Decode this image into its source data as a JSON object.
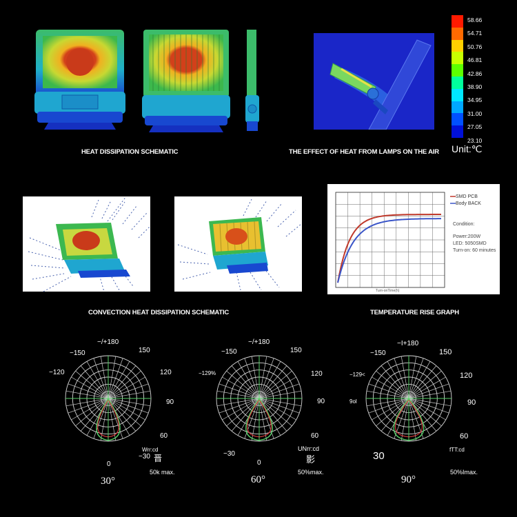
{
  "captions": {
    "heat_dissipation": "HEAT DISSIPATION SCHEMATIC",
    "air_effect": "THE EFFECT OF HEAT FROM LAMPS ON THE AIR",
    "convection": "CONVECTION HEAT DISSIPATION SCHEMATIC",
    "temp_rise": "TEMPERATURE RISE GRAPH"
  },
  "color_scale": {
    "values": [
      "58.66",
      "54.71",
      "50.76",
      "46.81",
      "42.86",
      "38.90",
      "34.95",
      "31.00",
      "27.05",
      "23.10"
    ],
    "colors": [
      "#ff1a00",
      "#ff6a00",
      "#ffd000",
      "#c8ff00",
      "#5cff00",
      "#00ff9c",
      "#00e8ff",
      "#00a8ff",
      "#0050ff",
      "#0010d8"
    ],
    "unit": "Unit:℃"
  },
  "temp_graph": {
    "legend": [
      "SMD PCB",
      "Body BACK"
    ],
    "legend_colors": [
      "#c0392b",
      "#3a55c8"
    ],
    "condition_title": "Condition:",
    "conditions": [
      "Power:200W",
      "LED: 5050SMD",
      "Turn-on: 60 minutes"
    ],
    "xlabel": "Turn-onTime(h)",
    "ylabel": "Temperature °C"
  },
  "polar": [
    {
      "angle_labels": [
        "−/+180",
        "−150",
        "150",
        "−120",
        "120",
        "90",
        "60",
        "−30",
        "0"
      ],
      "unit_label": "Wrr:cd",
      "glyph": "晋",
      "max_label": "50k  max.",
      "beam": "30°"
    },
    {
      "angle_labels": [
        "−/+180",
        "−150",
        "150",
        "−129%",
        "120",
        "90",
        "60",
        "−30",
        "0"
      ],
      "unit_label": "UNrr:cd",
      "glyph": "影",
      "max_label": "50%max.",
      "beam": "60°"
    },
    {
      "angle_labels": [
        "−I+180",
        "−150",
        "150",
        "−129<",
        "120",
        "9ol",
        "90",
        "60",
        "30"
      ],
      "unit_label": "fTT:cd",
      "glyph": "",
      "max_label": "50%Imax.",
      "beam": "90°"
    }
  ]
}
